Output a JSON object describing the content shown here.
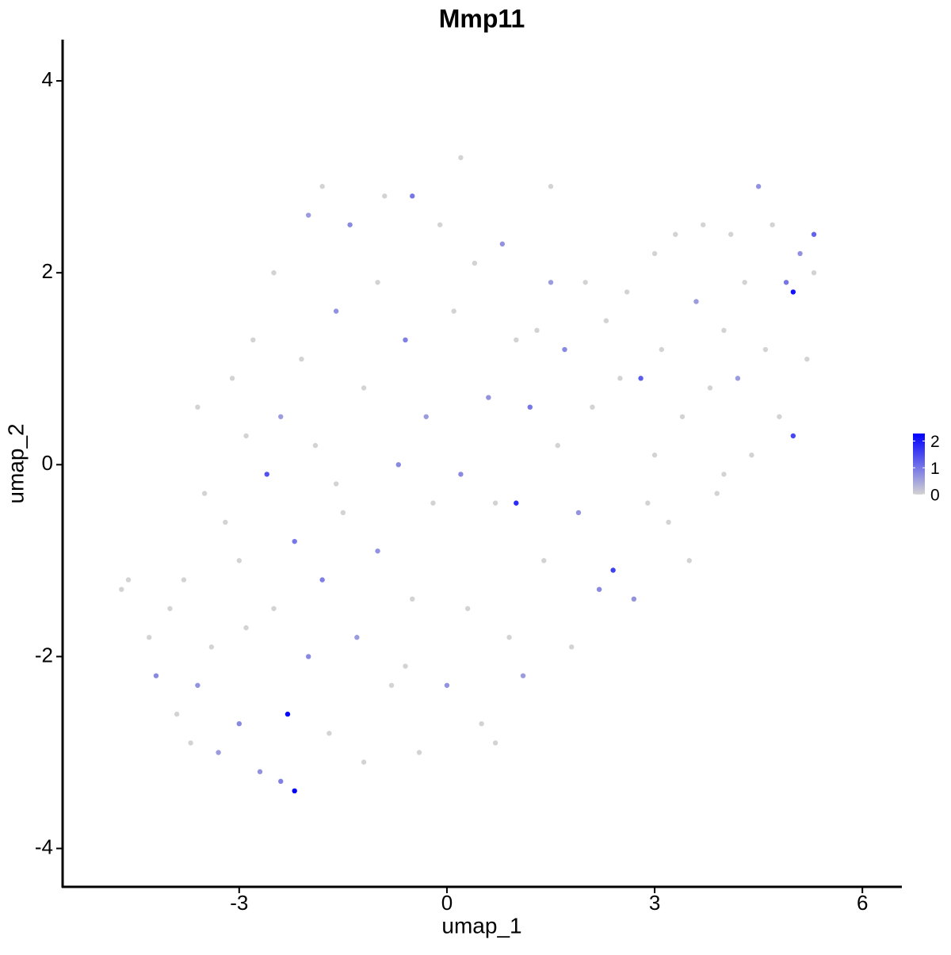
{
  "chart_data": {
    "type": "scatter",
    "title": "Mmp11",
    "x_label": "umap_1",
    "y_label": "umap_2",
    "xlim": [
      -5.55,
      6.57
    ],
    "ylim": [
      -4.4,
      4.43
    ],
    "xticks": [
      -3,
      0,
      3,
      6
    ],
    "yticks": [
      -4,
      -2,
      0,
      2,
      4
    ],
    "x": [
      -4.7,
      -4.6,
      -4.3,
      -4.2,
      -4.0,
      -3.9,
      -3.8,
      -3.7,
      -3.6,
      -3.5,
      -3.4,
      -3.3,
      -3.2,
      -3.1,
      -3.0,
      -3.0,
      -2.9,
      -2.8,
      -2.7,
      -2.6,
      -2.5,
      -2.5,
      -2.4,
      -2.4,
      -2.3,
      -2.2,
      -2.2,
      -2.1,
      -2.0,
      -2.0,
      -1.9,
      -1.8,
      -1.8,
      -1.7,
      -1.6,
      -1.5,
      -1.4,
      -1.3,
      -1.2,
      -1.2,
      -1.0,
      -1.0,
      -0.9,
      -0.8,
      -0.7,
      -0.6,
      -0.5,
      -0.5,
      -0.4,
      -0.3,
      -0.2,
      -0.1,
      0.0,
      0.1,
      0.2,
      0.2,
      0.3,
      0.4,
      0.5,
      0.6,
      0.7,
      0.8,
      0.9,
      1.0,
      1.0,
      1.1,
      1.2,
      1.3,
      1.4,
      1.5,
      1.6,
      1.7,
      1.8,
      1.9,
      2.0,
      2.1,
      2.2,
      2.3,
      2.4,
      2.5,
      2.6,
      2.7,
      2.8,
      2.9,
      3.0,
      3.1,
      3.2,
      3.3,
      3.4,
      3.5,
      3.6,
      3.7,
      3.8,
      3.9,
      4.0,
      4.1,
      4.2,
      4.3,
      4.4,
      4.5,
      4.6,
      4.7,
      4.8,
      4.9,
      5.0,
      5.0,
      5.1,
      5.2,
      5.3,
      5.3,
      -0.6,
      0.7,
      -2.9,
      -1.6,
      3.0,
      1.5,
      -3.6,
      4.0
    ],
    "y": [
      -1.3,
      -1.2,
      -1.8,
      -2.2,
      -1.5,
      -2.6,
      -1.2,
      -2.9,
      -2.3,
      -0.3,
      -1.9,
      -3.0,
      -0.6,
      0.9,
      -2.7,
      -1.0,
      0.3,
      1.3,
      -3.2,
      -0.1,
      -1.5,
      2.0,
      -3.3,
      0.5,
      -2.6,
      -3.4,
      -0.8,
      1.1,
      -2.0,
      2.6,
      0.2,
      -1.2,
      2.9,
      -2.8,
      1.6,
      -0.5,
      2.5,
      -1.8,
      0.8,
      -3.1,
      1.9,
      -0.9,
      2.8,
      -2.3,
      0.0,
      1.3,
      -1.4,
      2.8,
      -3.0,
      0.5,
      -0.4,
      2.5,
      -2.3,
      1.6,
      3.2,
      -0.1,
      -1.5,
      2.1,
      -2.7,
      0.7,
      -0.4,
      2.3,
      -1.8,
      -0.4,
      1.3,
      -2.2,
      0.6,
      1.4,
      -1.0,
      2.9,
      0.2,
      1.2,
      -1.9,
      -0.5,
      1.9,
      0.6,
      -1.3,
      1.5,
      -1.1,
      0.9,
      1.8,
      -1.4,
      0.9,
      -0.4,
      2.2,
      1.2,
      -0.6,
      2.4,
      0.5,
      -1.0,
      1.7,
      2.5,
      0.8,
      -0.3,
      1.4,
      2.4,
      0.9,
      1.9,
      0.1,
      2.9,
      1.2,
      2.5,
      0.5,
      1.9,
      1.8,
      0.3,
      2.2,
      1.1,
      2.4,
      2.0,
      -2.1,
      -2.9,
      -1.7,
      -0.2,
      0.1,
      1.9,
      0.6,
      -0.1
    ],
    "values": [
      0,
      0,
      0,
      0.8,
      0,
      0,
      0,
      0,
      0.7,
      0,
      0,
      0.6,
      0,
      0,
      0.8,
      0,
      0,
      0,
      0.7,
      1.4,
      0,
      0,
      0.9,
      0.6,
      2.2,
      2.4,
      1.0,
      0,
      0.8,
      0.6,
      0,
      0.9,
      0,
      0,
      0.7,
      0,
      0.8,
      0.6,
      0,
      0,
      0,
      0.7,
      0,
      0,
      0.8,
      0.9,
      0,
      1.0,
      0,
      0.6,
      0,
      0,
      0.7,
      0,
      0,
      0.8,
      0,
      0,
      0,
      0.7,
      0,
      0.7,
      0,
      1.8,
      0,
      0.6,
      1.0,
      0,
      0,
      0,
      0,
      0.8,
      0,
      0.7,
      0,
      0,
      0.8,
      0,
      1.6,
      0,
      0,
      0.7,
      1.3,
      0,
      0,
      0,
      0,
      0,
      0,
      0,
      0.6,
      0,
      0,
      0,
      0,
      0,
      0.6,
      0,
      0,
      0.7,
      0,
      0,
      0,
      1.0,
      2.1,
      1.5,
      0.7,
      0,
      1.2,
      0,
      0,
      0,
      0,
      0,
      0,
      0.6,
      0,
      0
    ],
    "color_scale": {
      "low": "#d3d3d3",
      "high": "#0000ff",
      "lim": [
        0,
        2.28
      ],
      "ticks": [
        0,
        1,
        2
      ]
    }
  }
}
